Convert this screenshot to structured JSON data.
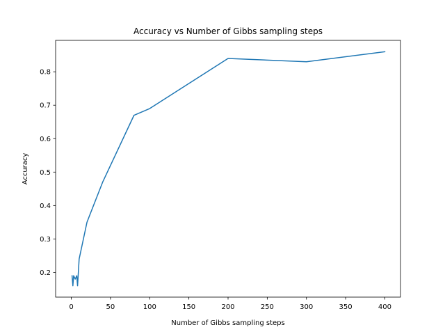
{
  "chart_data": {
    "type": "line",
    "title": "Accuracy vs Number of Gibbs sampling steps",
    "xlabel": "Number of Gibbs sampling steps",
    "ylabel": "Accuracy",
    "xlim": [
      -20,
      420
    ],
    "ylim": [
      0.126,
      0.894
    ],
    "xticks": [
      0,
      50,
      100,
      150,
      200,
      250,
      300,
      350,
      400
    ],
    "yticks": [
      0.2,
      0.3,
      0.4,
      0.5,
      0.6,
      0.7,
      0.8
    ],
    "grid": false,
    "series": [
      {
        "color": "#1f77b4",
        "x": [
          1,
          2,
          3,
          5,
          7,
          8,
          10,
          20,
          40,
          80,
          100,
          200,
          300,
          400
        ],
        "y": [
          0.19,
          0.16,
          0.19,
          0.18,
          0.19,
          0.16,
          0.24,
          0.35,
          0.47,
          0.67,
          0.69,
          0.84,
          0.83,
          0.86
        ]
      }
    ]
  }
}
